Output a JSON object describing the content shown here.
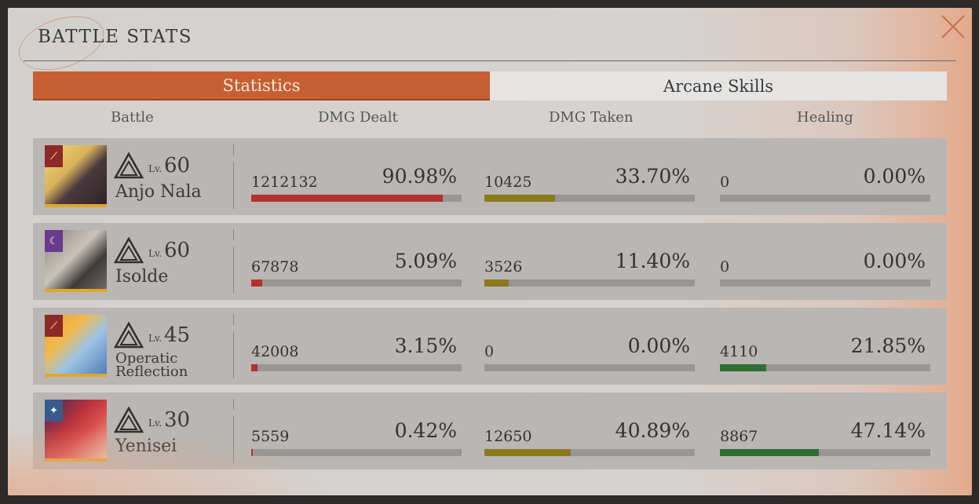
{
  "title": "BATTLE STATS",
  "tabs": [
    {
      "label": "Statistics",
      "active": true
    },
    {
      "label": "Arcane Skills",
      "active": false
    }
  ],
  "columns": [
    "Battle",
    "DMG Dealt",
    "DMG Taken",
    "Healing"
  ],
  "colors": {
    "accent": "#c65f31",
    "dmg_dealt_bar": "#b4302c",
    "dmg_taken_bar": "#8a7a1c",
    "healing_bar": "#2f6e34"
  },
  "lv_label": "Lv.",
  "rows": [
    {
      "name": "Anjo Nala",
      "level": "60",
      "element_icon": "claw-mark-icon",
      "element_color": "#8e2a26",
      "dealt": {
        "value": "1212132",
        "pct": "90.98%",
        "fraction": 0.9098
      },
      "taken": {
        "value": "10425",
        "pct": "33.70%",
        "fraction": 0.337
      },
      "healing": {
        "value": "0",
        "pct": "0.00%",
        "fraction": 0
      }
    },
    {
      "name": "Isolde",
      "level": "60",
      "element_icon": "crescent-moon-icon",
      "element_color": "#6b3a8e",
      "dealt": {
        "value": "67878",
        "pct": "5.09%",
        "fraction": 0.0509
      },
      "taken": {
        "value": "3526",
        "pct": "11.40%",
        "fraction": 0.114
      },
      "healing": {
        "value": "0",
        "pct": "0.00%",
        "fraction": 0
      }
    },
    {
      "name_line1": "Operatic",
      "name_line2": "Reflection",
      "level": "45",
      "element_icon": "claw-mark-icon",
      "element_color": "#8e2a26",
      "dealt": {
        "value": "42008",
        "pct": "3.15%",
        "fraction": 0.0315
      },
      "taken": {
        "value": "0",
        "pct": "0.00%",
        "fraction": 0
      },
      "healing": {
        "value": "4110",
        "pct": "21.85%",
        "fraction": 0.2185
      }
    },
    {
      "name": "Yenisei",
      "level": "30",
      "element_icon": "four-point-star-icon",
      "element_color": "#3a5a8e",
      "dealt": {
        "value": "5559",
        "pct": "0.42%",
        "fraction": 0.0042
      },
      "taken": {
        "value": "12650",
        "pct": "40.89%",
        "fraction": 0.4089
      },
      "healing": {
        "value": "8867",
        "pct": "47.14%",
        "fraction": 0.4714
      }
    }
  ]
}
